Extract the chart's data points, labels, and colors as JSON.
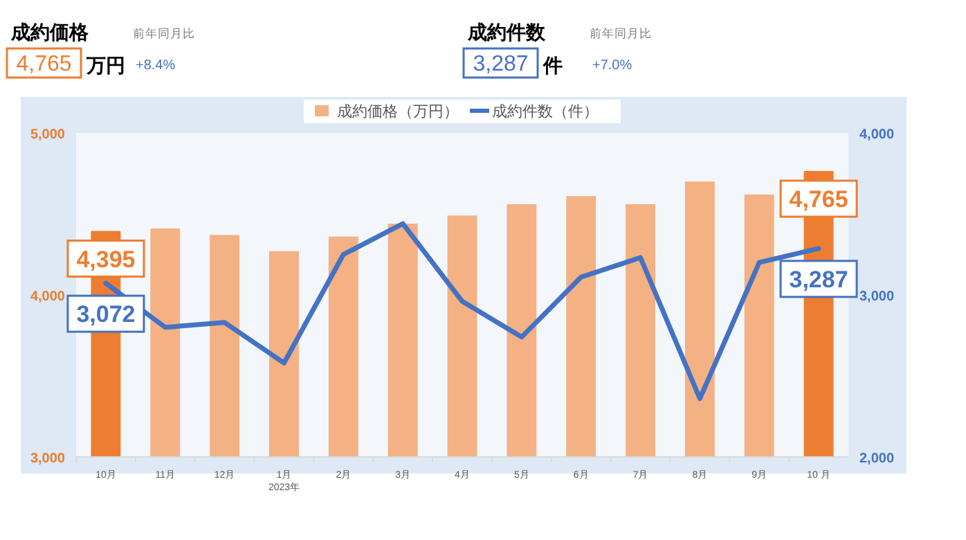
{
  "chart_data": {
    "type": "bar",
    "categories": [
      "10月",
      "11月",
      "12月",
      "1月",
      "2月",
      "3月",
      "4月",
      "5月",
      "6月",
      "7月",
      "8月",
      "9月",
      "10 月"
    ],
    "series": [
      {
        "name": "成約価格（万円）",
        "color": "#f4b183",
        "colors": [
          "#ed7d31",
          "#f4b183",
          "#f4b183",
          "#f4b183",
          "#f4b183",
          "#f4b183",
          "#f4b183",
          "#f4b183",
          "#f4b183",
          "#f4b183",
          "#f4b183",
          "#f4b183",
          "#ed7d31"
        ],
        "values": [
          4395,
          4410,
          4370,
          4270,
          4360,
          4440,
          4490,
          4560,
          4610,
          4560,
          4700,
          4620,
          4765
        ],
        "value_labels": [
          "4,395",
          null,
          null,
          null,
          null,
          null,
          null,
          null,
          null,
          null,
          null,
          null,
          "4,765"
        ]
      },
      {
        "name": "成約件数（件）",
        "type": "line",
        "axis": "y2",
        "color": "#4472c4",
        "values": [
          3072,
          2800,
          2830,
          2580,
          3250,
          3440,
          2960,
          2740,
          3110,
          3230,
          2360,
          3200,
          3287
        ],
        "value_labels": [
          "3,072",
          null,
          null,
          null,
          null,
          null,
          null,
          null,
          null,
          null,
          null,
          null,
          "3,287"
        ]
      }
    ],
    "ylim": [
      3000,
      5000
    ],
    "yticks": [
      {
        "value": 3000,
        "label": "3,000"
      },
      {
        "value": 4000,
        "label": "4,000"
      },
      {
        "value": 5000,
        "label": "5,000"
      }
    ],
    "y2lim": [
      2000,
      4000
    ],
    "y2ticks": [
      {
        "value": 2000,
        "label": "2,000"
      },
      {
        "value": 3000,
        "label": "3,000"
      },
      {
        "value": 4000,
        "label": "4,000"
      }
    ],
    "legend": "top",
    "grid": false,
    "marker": "none",
    "line_style": "solid",
    "annotations": [
      "成約価格",
      "前年同月比",
      "4,765",
      "万円",
      "+8.4%",
      "成約件数",
      "前年同月比",
      "3,287",
      "件",
      "+7.0%",
      "2023年"
    ]
  }
}
